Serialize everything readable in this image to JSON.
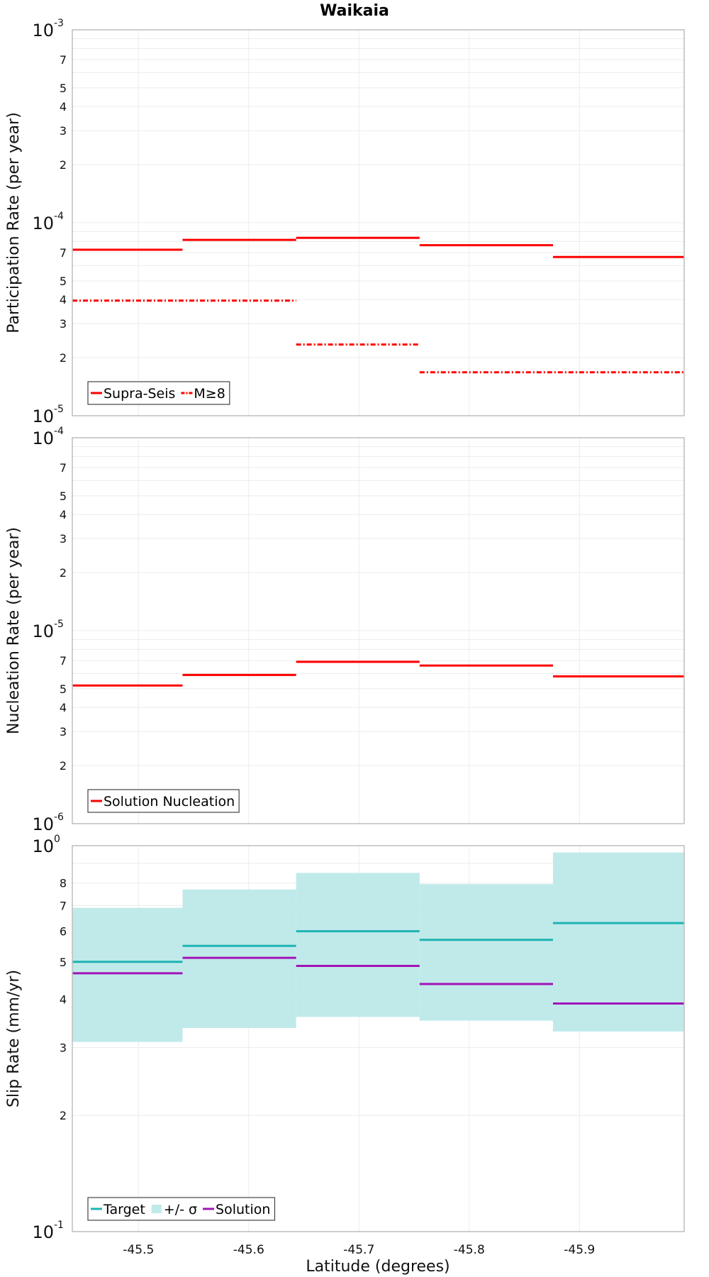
{
  "title": "Waikaia",
  "xlabel": "Latitude (degrees)",
  "colors": {
    "red": "#ff0000",
    "target": "#1fb3b3",
    "sigma_fill": "#c0eaea",
    "solution": "#a313b8",
    "grid": "#ececec",
    "frame": "#bdbdbd"
  },
  "chart_data": [
    {
      "type": "line",
      "style": "step",
      "ylabel": "Participation Rate (per year)",
      "yscale": "log",
      "ylim": [
        1e-05,
        0.001
      ],
      "xlim": [
        -45.44,
        -45.995
      ],
      "x_ticks": [
        "-45.5",
        "-45.6",
        "-45.7",
        "-45.8",
        "-45.9"
      ],
      "x_tick_values": [
        -45.5,
        -45.6,
        -45.7,
        -45.8,
        -45.9
      ],
      "y_decades": [
        {
          "base": "10",
          "exp": "-5"
        },
        {
          "base": "10",
          "exp": "-4"
        },
        {
          "base": "10",
          "exp": "-3"
        }
      ],
      "y_minor_labels": [
        "2",
        "3",
        "4",
        "5",
        "7"
      ],
      "legend": {
        "placement": "bottom-left",
        "entries": [
          "Supra-Seis",
          "M≥8"
        ]
      },
      "series": [
        {
          "name": "Supra-Seis",
          "style": "solid",
          "segments": [
            {
              "x0": -45.44,
              "x1": -45.54,
              "y": 7.25e-05
            },
            {
              "x0": -45.54,
              "x1": -45.643,
              "y": 8.15e-05
            },
            {
              "x0": -45.643,
              "x1": -45.755,
              "y": 8.35e-05
            },
            {
              "x0": -45.755,
              "x1": -45.876,
              "y": 7.65e-05
            },
            {
              "x0": -45.876,
              "x1": -45.995,
              "y": 6.65e-05
            }
          ]
        },
        {
          "name": "M≥8",
          "style": "dashdot",
          "segments": [
            {
              "x0": -45.44,
              "x1": -45.643,
              "y": 3.95e-05
            },
            {
              "x0": -45.643,
              "x1": -45.755,
              "y": 2.34e-05
            },
            {
              "x0": -45.755,
              "x1": -45.995,
              "y": 1.68e-05
            }
          ]
        }
      ]
    },
    {
      "type": "line",
      "style": "step",
      "ylabel": "Nucleation Rate (per year)",
      "yscale": "log",
      "ylim": [
        1e-06,
        0.0001
      ],
      "xlim": [
        -45.44,
        -45.995
      ],
      "x_ticks": [
        "-45.5",
        "-45.6",
        "-45.7",
        "-45.8",
        "-45.9"
      ],
      "x_tick_values": [
        -45.5,
        -45.6,
        -45.7,
        -45.8,
        -45.9
      ],
      "y_decades": [
        {
          "base": "10",
          "exp": "-6"
        },
        {
          "base": "10",
          "exp": "-5"
        },
        {
          "base": "10",
          "exp": "-4"
        }
      ],
      "y_minor_labels": [
        "2",
        "3",
        "4",
        "5",
        "7"
      ],
      "legend": {
        "placement": "bottom-left",
        "entries": [
          "Solution Nucleation"
        ]
      },
      "series": [
        {
          "name": "Solution Nucleation",
          "style": "solid",
          "segments": [
            {
              "x0": -45.44,
              "x1": -45.54,
              "y": 5.2e-06
            },
            {
              "x0": -45.54,
              "x1": -45.643,
              "y": 5.9e-06
            },
            {
              "x0": -45.643,
              "x1": -45.755,
              "y": 6.9e-06
            },
            {
              "x0": -45.755,
              "x1": -45.876,
              "y": 6.6e-06
            },
            {
              "x0": -45.876,
              "x1": -45.995,
              "y": 5.8e-06
            }
          ]
        }
      ]
    },
    {
      "type": "line",
      "style": "step",
      "ylabel": "Slip Rate (mm/yr)",
      "yscale": "log",
      "ylim": [
        0.1,
        1
      ],
      "xlim": [
        -45.44,
        -45.995
      ],
      "x_ticks": [
        "-45.5",
        "-45.6",
        "-45.7",
        "-45.8",
        "-45.9"
      ],
      "x_tick_values": [
        -45.5,
        -45.6,
        -45.7,
        -45.8,
        -45.9
      ],
      "y_decades": [
        {
          "base": "10",
          "exp": "-1"
        },
        {
          "base": "10",
          "exp": "0"
        }
      ],
      "y_minor_labels": [
        "2",
        "3",
        "4",
        "5",
        "6",
        "7",
        "8"
      ],
      "legend": {
        "placement": "bottom-left",
        "entries": [
          "Target",
          "+/- σ",
          "Solution"
        ]
      },
      "band": {
        "name": "+/- σ",
        "segments": [
          {
            "x0": -45.44,
            "x1": -45.54,
            "lo": 0.31,
            "hi": 0.69
          },
          {
            "x0": -45.54,
            "x1": -45.643,
            "lo": 0.337,
            "hi": 0.77
          },
          {
            "x0": -45.643,
            "x1": -45.755,
            "lo": 0.36,
            "hi": 0.85
          },
          {
            "x0": -45.755,
            "x1": -45.876,
            "lo": 0.352,
            "hi": 0.795
          },
          {
            "x0": -45.876,
            "x1": -45.995,
            "lo": 0.33,
            "hi": 0.96
          }
        ]
      },
      "series": [
        {
          "name": "Target",
          "style": "solid",
          "segments": [
            {
              "x0": -45.44,
              "x1": -45.54,
              "y": 0.5
            },
            {
              "x0": -45.54,
              "x1": -45.643,
              "y": 0.55
            },
            {
              "x0": -45.643,
              "x1": -45.755,
              "y": 0.6
            },
            {
              "x0": -45.755,
              "x1": -45.876,
              "y": 0.57
            },
            {
              "x0": -45.876,
              "x1": -45.995,
              "y": 0.63
            }
          ]
        },
        {
          "name": "Solution",
          "style": "solid",
          "segments": [
            {
              "x0": -45.44,
              "x1": -45.54,
              "y": 0.467
            },
            {
              "x0": -45.54,
              "x1": -45.643,
              "y": 0.512
            },
            {
              "x0": -45.643,
              "x1": -45.755,
              "y": 0.488
            },
            {
              "x0": -45.755,
              "x1": -45.876,
              "y": 0.438
            },
            {
              "x0": -45.876,
              "x1": -45.995,
              "y": 0.39
            }
          ]
        }
      ]
    }
  ]
}
